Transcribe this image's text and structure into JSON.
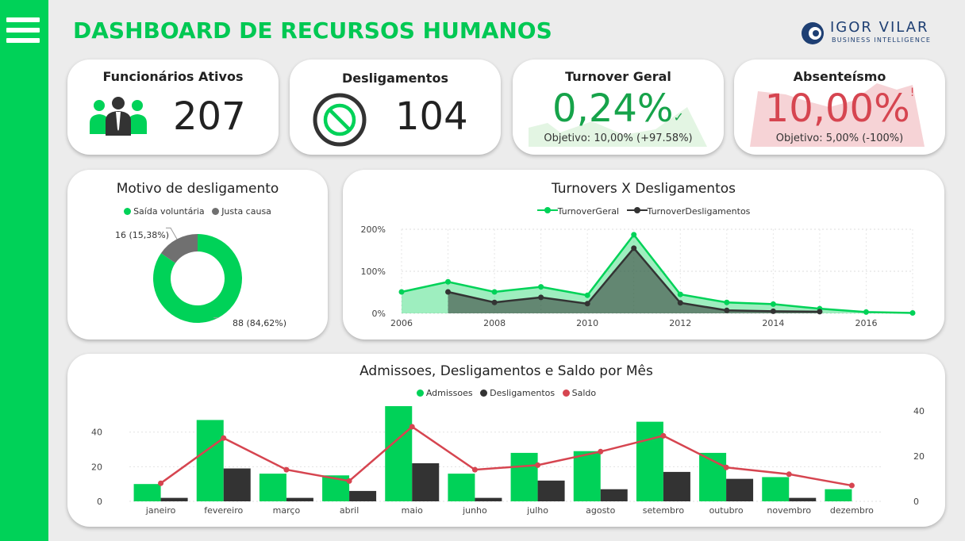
{
  "header": {
    "title": "DASHBOARD DE RECURSOS HUMANOS",
    "logo_text": "IGOR VILAR",
    "logo_subtext": "BUSINESS INTELLIGENCE"
  },
  "colors": {
    "green": "#00d258",
    "dark": "#333333",
    "red": "#d64550",
    "green_fill": "#e3f5e3",
    "red_fill": "#f6d3d6"
  },
  "kpis": {
    "funcionarios": {
      "title": "Funcionários Ativos",
      "value": "207",
      "icon": "people-icon"
    },
    "desligamentos": {
      "title": "Desligamentos",
      "value": "104",
      "icon": "ban-icon"
    },
    "turnover": {
      "title": "Turnover Geral",
      "value": "0,24%",
      "mark": "✓",
      "objetivo": "Objetivo: 10,00% (+97.58%)"
    },
    "absenteismo": {
      "title": "Absenteísmo",
      "value": "10,00%",
      "mark": "!",
      "objetivo": "Objetivo: 5,00% (-100%)"
    }
  },
  "chart_data": [
    {
      "type": "pie",
      "title": "Motivo de desligamento",
      "legend": [
        "Saída voluntária",
        "Justa causa"
      ],
      "slices": [
        {
          "name": "Saída voluntária",
          "value": 88,
          "label": "88 (84,62%)",
          "color": "#00d258"
        },
        {
          "name": "Justa causa",
          "value": 16,
          "label": "16 (15,38%)",
          "color": "#707070"
        }
      ]
    },
    {
      "type": "area",
      "title": "Turnovers X Desligamentos",
      "x": [
        2006,
        2007,
        2008,
        2009,
        2010,
        2011,
        2012,
        2013,
        2014,
        2015,
        2016,
        2017
      ],
      "xticks": [
        "2006",
        "2008",
        "2010",
        "2012",
        "2014",
        "2016"
      ],
      "yticks": [
        "0%",
        "100%",
        "200%"
      ],
      "ylim": [
        0,
        200
      ],
      "series": [
        {
          "name": "TurnoverGeral",
          "color": "#00d258",
          "values": [
            51,
            75,
            51,
            63,
            43,
            187,
            45,
            26,
            22,
            11,
            3,
            1
          ]
        },
        {
          "name": "TurnoverDesligamentos",
          "color": "#333333",
          "values": [
            null,
            51,
            26,
            38,
            23,
            155,
            25,
            7,
            5,
            4,
            null,
            null
          ]
        }
      ]
    },
    {
      "type": "bar",
      "title": "Admissoes, Desligamentos e Saldo por Mês",
      "categories": [
        "janeiro",
        "fevereiro",
        "março",
        "abril",
        "maio",
        "junho",
        "julho",
        "agosto",
        "setembro",
        "outubro",
        "novembro",
        "dezembro"
      ],
      "yticks_left": [
        "0",
        "20",
        "40"
      ],
      "yticks_right": [
        "0",
        "20",
        "40"
      ],
      "ylim": [
        0,
        55
      ],
      "series": [
        {
          "name": "Admissoes",
          "color": "#00d258",
          "values": [
            10,
            47,
            16,
            15,
            55,
            16,
            28,
            29,
            46,
            28,
            14,
            7
          ]
        },
        {
          "name": "Desligamentos",
          "color": "#333333",
          "values": [
            2,
            19,
            2,
            6,
            22,
            2,
            12,
            7,
            17,
            13,
            2,
            0
          ]
        },
        {
          "name": "Saldo",
          "color": "#d64550",
          "values": [
            8,
            28,
            14,
            9,
            33,
            14,
            16,
            22,
            29,
            15,
            12,
            7
          ]
        }
      ]
    }
  ]
}
